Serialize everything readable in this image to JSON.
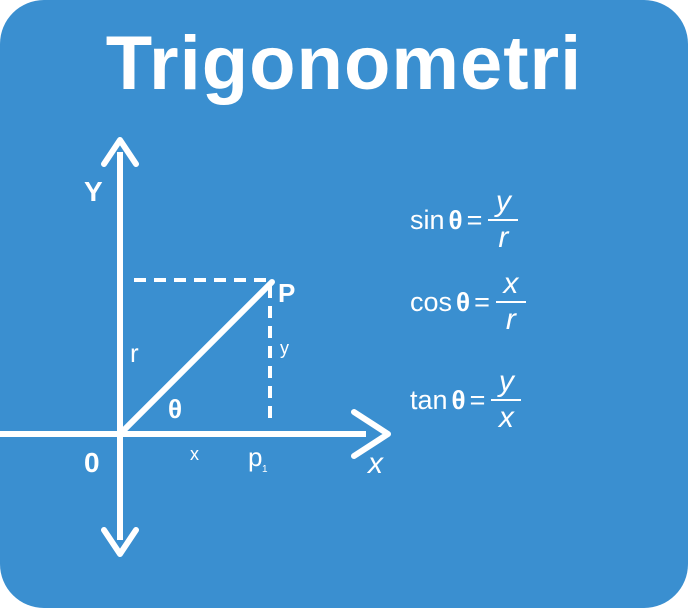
{
  "title": "Trigonometri",
  "axes": {
    "y_label": "Y",
    "x_label": "x",
    "origin_label": "0"
  },
  "labels": {
    "point": "P",
    "radius": "r",
    "opposite": "y",
    "adjacent": "x",
    "angle": "θ",
    "projection": "p",
    "projection_sub": "1"
  },
  "formulas": [
    {
      "fn": "sin",
      "theta": "θ",
      "eq": "=",
      "num": "y",
      "den": "r"
    },
    {
      "fn": "cos",
      "theta": "θ",
      "eq": "=",
      "num": "x",
      "den": "r"
    },
    {
      "fn": "tan",
      "theta": "θ",
      "eq": "=",
      "num": "y",
      "den": "x"
    }
  ],
  "colors": {
    "background": "#3a8fd0",
    "foreground": "#ffffff"
  }
}
